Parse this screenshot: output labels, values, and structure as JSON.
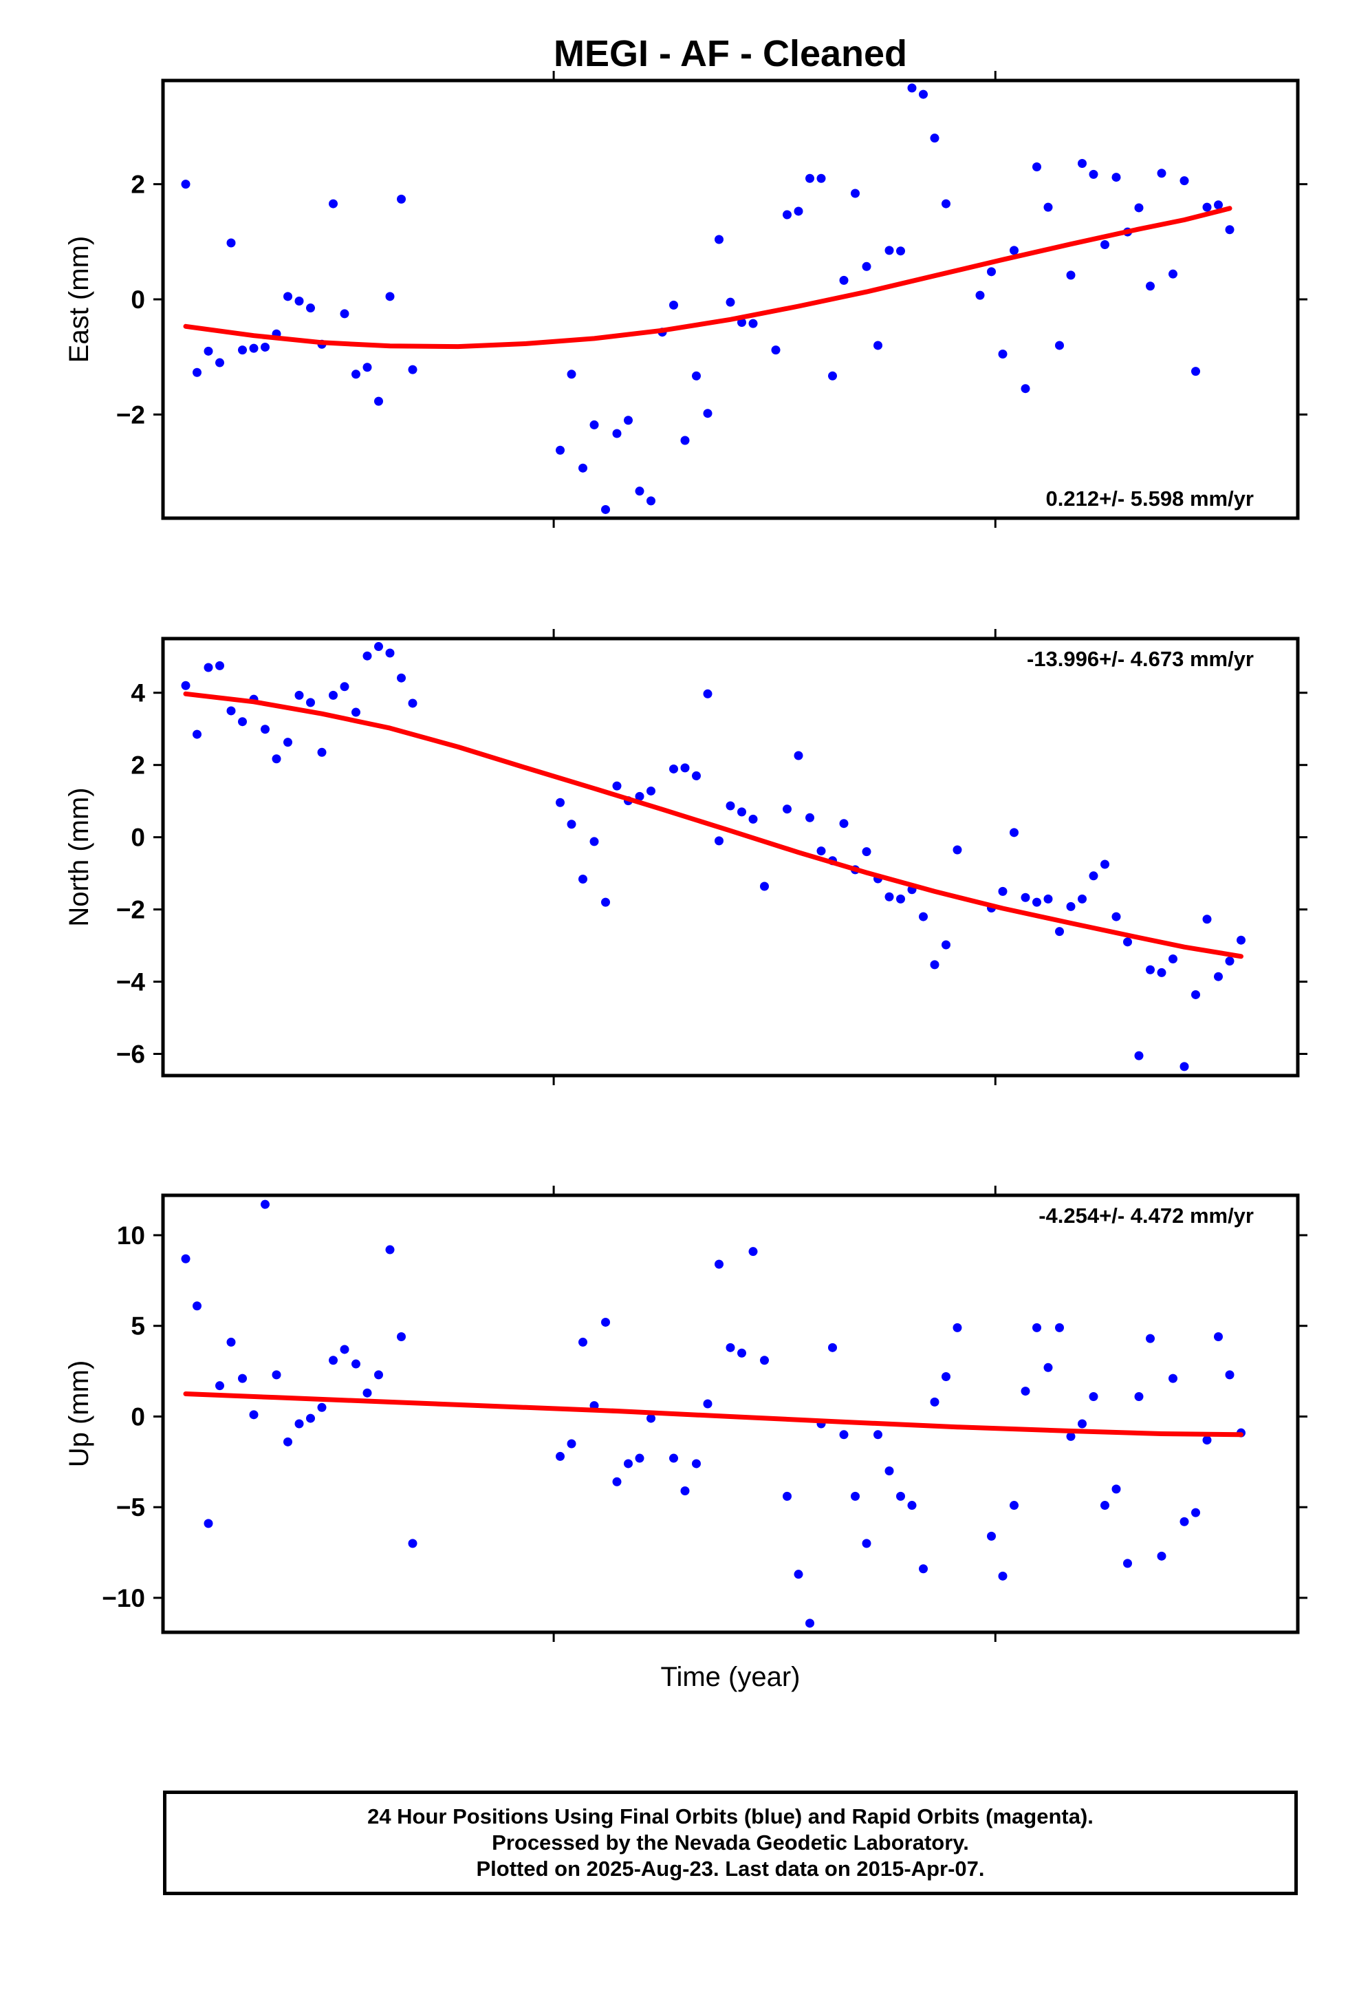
{
  "title": "MEGI  - AF - Cleaned",
  "xlabel": "Time (year)",
  "colors": {
    "points": "#0000ff",
    "fit": "#ff0000",
    "frame": "#000000"
  },
  "chart_data": [
    {
      "type": "scatter",
      "ylabel": "East (mm)",
      "ylim": [
        -3.8,
        3.8
      ],
      "yticks": [
        -2,
        0,
        2
      ],
      "xlim": [
        0,
        100
      ],
      "rate_label": "0.212+/- 5.598 mm/yr",
      "series": [
        {
          "points": [
            [
              2,
              2.0
            ],
            [
              3,
              -1.27
            ],
            [
              4,
              -0.9
            ],
            [
              5,
              -1.1
            ],
            [
              6,
              0.98
            ],
            [
              7,
              -0.88
            ],
            [
              8,
              -0.85
            ],
            [
              9,
              -0.83
            ],
            [
              10,
              -0.6
            ],
            [
              11,
              0.05
            ],
            [
              12,
              -0.03
            ],
            [
              13,
              -0.15
            ],
            [
              14,
              -0.78
            ],
            [
              15,
              1.66
            ],
            [
              16,
              -0.25
            ],
            [
              17,
              -1.3
            ],
            [
              18,
              -1.18
            ],
            [
              19,
              -1.77
            ],
            [
              20,
              0.05
            ],
            [
              21,
              1.74
            ],
            [
              22,
              -1.22
            ],
            [
              35,
              -2.62
            ],
            [
              36,
              -1.3
            ],
            [
              37,
              -2.93
            ],
            [
              38,
              -2.18
            ],
            [
              39,
              -3.65
            ],
            [
              40,
              -2.33
            ],
            [
              41,
              -2.1
            ],
            [
              42,
              -3.33
            ],
            [
              43,
              -3.5
            ],
            [
              44,
              -0.57
            ],
            [
              45,
              -0.1
            ],
            [
              46,
              -2.45
            ],
            [
              47,
              -1.33
            ],
            [
              48,
              -1.98
            ],
            [
              49,
              1.04
            ],
            [
              50,
              -0.05
            ],
            [
              51,
              -0.4
            ],
            [
              52,
              -0.42
            ],
            [
              54,
              -0.88
            ],
            [
              55,
              1.47
            ],
            [
              56,
              1.53
            ],
            [
              57,
              2.1
            ],
            [
              58,
              2.1
            ],
            [
              59,
              -1.33
            ],
            [
              60,
              0.33
            ],
            [
              61,
              1.84
            ],
            [
              62,
              0.57
            ],
            [
              63,
              -0.8
            ],
            [
              64,
              0.85
            ],
            [
              65,
              0.84
            ],
            [
              66,
              3.67
            ],
            [
              67,
              3.56
            ],
            [
              68,
              2.8
            ],
            [
              69,
              1.66
            ],
            [
              72,
              0.07
            ],
            [
              73,
              0.48
            ],
            [
              74,
              -0.95
            ],
            [
              75,
              0.85
            ],
            [
              76,
              -1.55
            ],
            [
              77,
              2.3
            ],
            [
              78,
              1.6
            ],
            [
              79,
              -0.8
            ],
            [
              80,
              0.42
            ],
            [
              81,
              2.36
            ],
            [
              82,
              2.17
            ],
            [
              83,
              0.95
            ],
            [
              84,
              2.12
            ],
            [
              85,
              1.17
            ],
            [
              86,
              1.59
            ],
            [
              87,
              0.23
            ],
            [
              88,
              2.19
            ],
            [
              89,
              0.44
            ],
            [
              90,
              2.06
            ],
            [
              91,
              -1.25
            ],
            [
              92,
              1.6
            ],
            [
              93,
              1.64
            ],
            [
              94,
              1.21
            ]
          ]
        }
      ],
      "fit": [
        [
          2,
          -0.47
        ],
        [
          8,
          -0.63
        ],
        [
          14,
          -0.75
        ],
        [
          20,
          -0.81
        ],
        [
          26,
          -0.82
        ],
        [
          32,
          -0.77
        ],
        [
          38,
          -0.68
        ],
        [
          44,
          -0.54
        ],
        [
          50,
          -0.35
        ],
        [
          56,
          -0.12
        ],
        [
          62,
          0.13
        ],
        [
          68,
          0.41
        ],
        [
          74,
          0.69
        ],
        [
          80,
          0.96
        ],
        [
          86,
          1.22
        ],
        [
          90,
          1.38
        ],
        [
          94,
          1.58
        ]
      ]
    },
    {
      "type": "scatter",
      "ylabel": "North (mm)",
      "ylim": [
        -6.6,
        5.5
      ],
      "yticks": [
        -6,
        -4,
        -2,
        0,
        2,
        4
      ],
      "xlim": [
        0,
        100
      ],
      "rate_label": "-13.996+/- 4.673 mm/yr",
      "series": [
        {
          "points": [
            [
              2,
              4.2
            ],
            [
              3,
              2.85
            ],
            [
              4,
              4.7
            ],
            [
              5,
              4.75
            ],
            [
              6,
              3.5
            ],
            [
              7,
              3.2
            ],
            [
              8,
              3.82
            ],
            [
              9,
              2.99
            ],
            [
              10,
              2.17
            ],
            [
              11,
              2.63
            ],
            [
              12,
              3.93
            ],
            [
              13,
              3.73
            ],
            [
              14,
              2.35
            ],
            [
              15,
              3.93
            ],
            [
              16,
              4.17
            ],
            [
              17,
              3.46
            ],
            [
              18,
              5.02
            ],
            [
              19,
              5.28
            ],
            [
              20,
              5.1
            ],
            [
              21,
              4.41
            ],
            [
              22,
              3.71
            ],
            [
              35,
              0.96
            ],
            [
              36,
              0.36
            ],
            [
              37,
              -1.16
            ],
            [
              38,
              -0.12
            ],
            [
              39,
              -1.8
            ],
            [
              40,
              1.42
            ],
            [
              41,
              1.01
            ],
            [
              42,
              1.13
            ],
            [
              43,
              1.28
            ],
            [
              45,
              1.89
            ],
            [
              46,
              1.92
            ],
            [
              47,
              1.7
            ],
            [
              48,
              3.97
            ],
            [
              49,
              -0.1
            ],
            [
              50,
              0.87
            ],
            [
              51,
              0.7
            ],
            [
              52,
              0.5
            ],
            [
              53,
              -1.36
            ],
            [
              55,
              0.78
            ],
            [
              56,
              2.26
            ],
            [
              57,
              0.54
            ],
            [
              58,
              -0.38
            ],
            [
              59,
              -0.65
            ],
            [
              60,
              0.38
            ],
            [
              61,
              -0.9
            ],
            [
              62,
              -0.4
            ],
            [
              63,
              -1.15
            ],
            [
              64,
              -1.65
            ],
            [
              65,
              -1.71
            ],
            [
              66,
              -1.45
            ],
            [
              67,
              -2.2
            ],
            [
              68,
              -3.53
            ],
            [
              69,
              -2.98
            ],
            [
              70,
              -0.35
            ],
            [
              73,
              -1.96
            ],
            [
              74,
              -1.5
            ],
            [
              75,
              0.13
            ],
            [
              76,
              -1.67
            ],
            [
              77,
              -1.8
            ],
            [
              78,
              -1.71
            ],
            [
              79,
              -2.61
            ],
            [
              80,
              -1.92
            ],
            [
              81,
              -1.71
            ],
            [
              82,
              -1.07
            ],
            [
              83,
              -0.75
            ],
            [
              84,
              -2.2
            ],
            [
              85,
              -2.9
            ],
            [
              86,
              -6.05
            ],
            [
              87,
              -3.67
            ],
            [
              88,
              -3.75
            ],
            [
              89,
              -3.37
            ],
            [
              90,
              -6.35
            ],
            [
              91,
              -4.36
            ],
            [
              92,
              -2.27
            ],
            [
              93,
              -3.86
            ],
            [
              94,
              -3.43
            ],
            [
              95,
              -2.85
            ]
          ]
        }
      ],
      "fit": [
        [
          2,
          3.97
        ],
        [
          8,
          3.75
        ],
        [
          14,
          3.42
        ],
        [
          20,
          3.02
        ],
        [
          26,
          2.5
        ],
        [
          32,
          1.92
        ],
        [
          38,
          1.35
        ],
        [
          44,
          0.77
        ],
        [
          50,
          0.18
        ],
        [
          56,
          -0.42
        ],
        [
          62,
          -0.98
        ],
        [
          68,
          -1.5
        ],
        [
          74,
          -1.97
        ],
        [
          80,
          -2.38
        ],
        [
          86,
          -2.78
        ],
        [
          90,
          -3.04
        ],
        [
          95,
          -3.3
        ]
      ]
    },
    {
      "type": "scatter",
      "ylabel": "Up (mm)",
      "ylim": [
        -11.9,
        12.2
      ],
      "yticks": [
        -10,
        -5,
        0,
        5,
        10
      ],
      "xlim": [
        0,
        100
      ],
      "rate_label": "-4.254+/- 4.472 mm/yr",
      "series": [
        {
          "points": [
            [
              2,
              8.7
            ],
            [
              3,
              6.1
            ],
            [
              4,
              -5.9
            ],
            [
              5,
              1.7
            ],
            [
              6,
              4.1
            ],
            [
              7,
              2.1
            ],
            [
              8,
              0.1
            ],
            [
              9,
              11.7
            ],
            [
              10,
              2.3
            ],
            [
              11,
              -1.4
            ],
            [
              12,
              -0.4
            ],
            [
              13,
              -0.1
            ],
            [
              14,
              0.5
            ],
            [
              15,
              3.1
            ],
            [
              16,
              3.7
            ],
            [
              17,
              2.9
            ],
            [
              18,
              1.3
            ],
            [
              19,
              2.3
            ],
            [
              20,
              9.2
            ],
            [
              21,
              4.4
            ],
            [
              22,
              -7.0
            ],
            [
              35,
              -2.2
            ],
            [
              36,
              -1.5
            ],
            [
              37,
              4.1
            ],
            [
              38,
              0.6
            ],
            [
              39,
              5.2
            ],
            [
              40,
              -3.6
            ],
            [
              41,
              -2.6
            ],
            [
              42,
              -2.3
            ],
            [
              43,
              -0.1
            ],
            [
              45,
              -2.3
            ],
            [
              46,
              -4.1
            ],
            [
              47,
              -2.6
            ],
            [
              48,
              0.7
            ],
            [
              49,
              8.4
            ],
            [
              50,
              3.8
            ],
            [
              51,
              3.5
            ],
            [
              52,
              9.1
            ],
            [
              53,
              3.1
            ],
            [
              55,
              -4.4
            ],
            [
              56,
              -8.7
            ],
            [
              57,
              -11.4
            ],
            [
              58,
              -0.4
            ],
            [
              59,
              3.8
            ],
            [
              60,
              -1.0
            ],
            [
              61,
              -4.4
            ],
            [
              62,
              -7.0
            ],
            [
              63,
              -1.0
            ],
            [
              64,
              -3.0
            ],
            [
              65,
              -4.4
            ],
            [
              66,
              -4.9
            ],
            [
              67,
              -8.4
            ],
            [
              68,
              0.8
            ],
            [
              69,
              2.2
            ],
            [
              70,
              4.9
            ],
            [
              73,
              -6.6
            ],
            [
              74,
              -8.8
            ],
            [
              75,
              -4.9
            ],
            [
              76,
              1.4
            ],
            [
              77,
              4.9
            ],
            [
              78,
              2.7
            ],
            [
              79,
              4.9
            ],
            [
              80,
              -1.1
            ],
            [
              81,
              -0.4
            ],
            [
              82,
              1.1
            ],
            [
              83,
              -4.9
            ],
            [
              84,
              -4.0
            ],
            [
              85,
              -8.1
            ],
            [
              86,
              1.1
            ],
            [
              87,
              4.3
            ],
            [
              88,
              -7.7
            ],
            [
              89,
              2.1
            ],
            [
              90,
              -5.8
            ],
            [
              91,
              -5.3
            ],
            [
              92,
              -1.3
            ],
            [
              93,
              4.4
            ],
            [
              94,
              2.3
            ],
            [
              95,
              -0.9
            ]
          ]
        }
      ],
      "fit": [
        [
          2,
          1.25
        ],
        [
          10,
          1.05
        ],
        [
          20,
          0.8
        ],
        [
          30,
          0.55
        ],
        [
          40,
          0.3
        ],
        [
          50,
          0.0
        ],
        [
          60,
          -0.3
        ],
        [
          70,
          -0.58
        ],
        [
          80,
          -0.8
        ],
        [
          88,
          -0.95
        ],
        [
          95,
          -1.0
        ]
      ]
    }
  ],
  "caption": {
    "line1": "24 Hour Positions Using Final Orbits (blue) and Rapid Orbits (magenta).",
    "line2": "Processed by the Nevada Geodetic Laboratory.",
    "line3": "Plotted on 2025-Aug-23. Last data on 2015-Apr-07."
  }
}
